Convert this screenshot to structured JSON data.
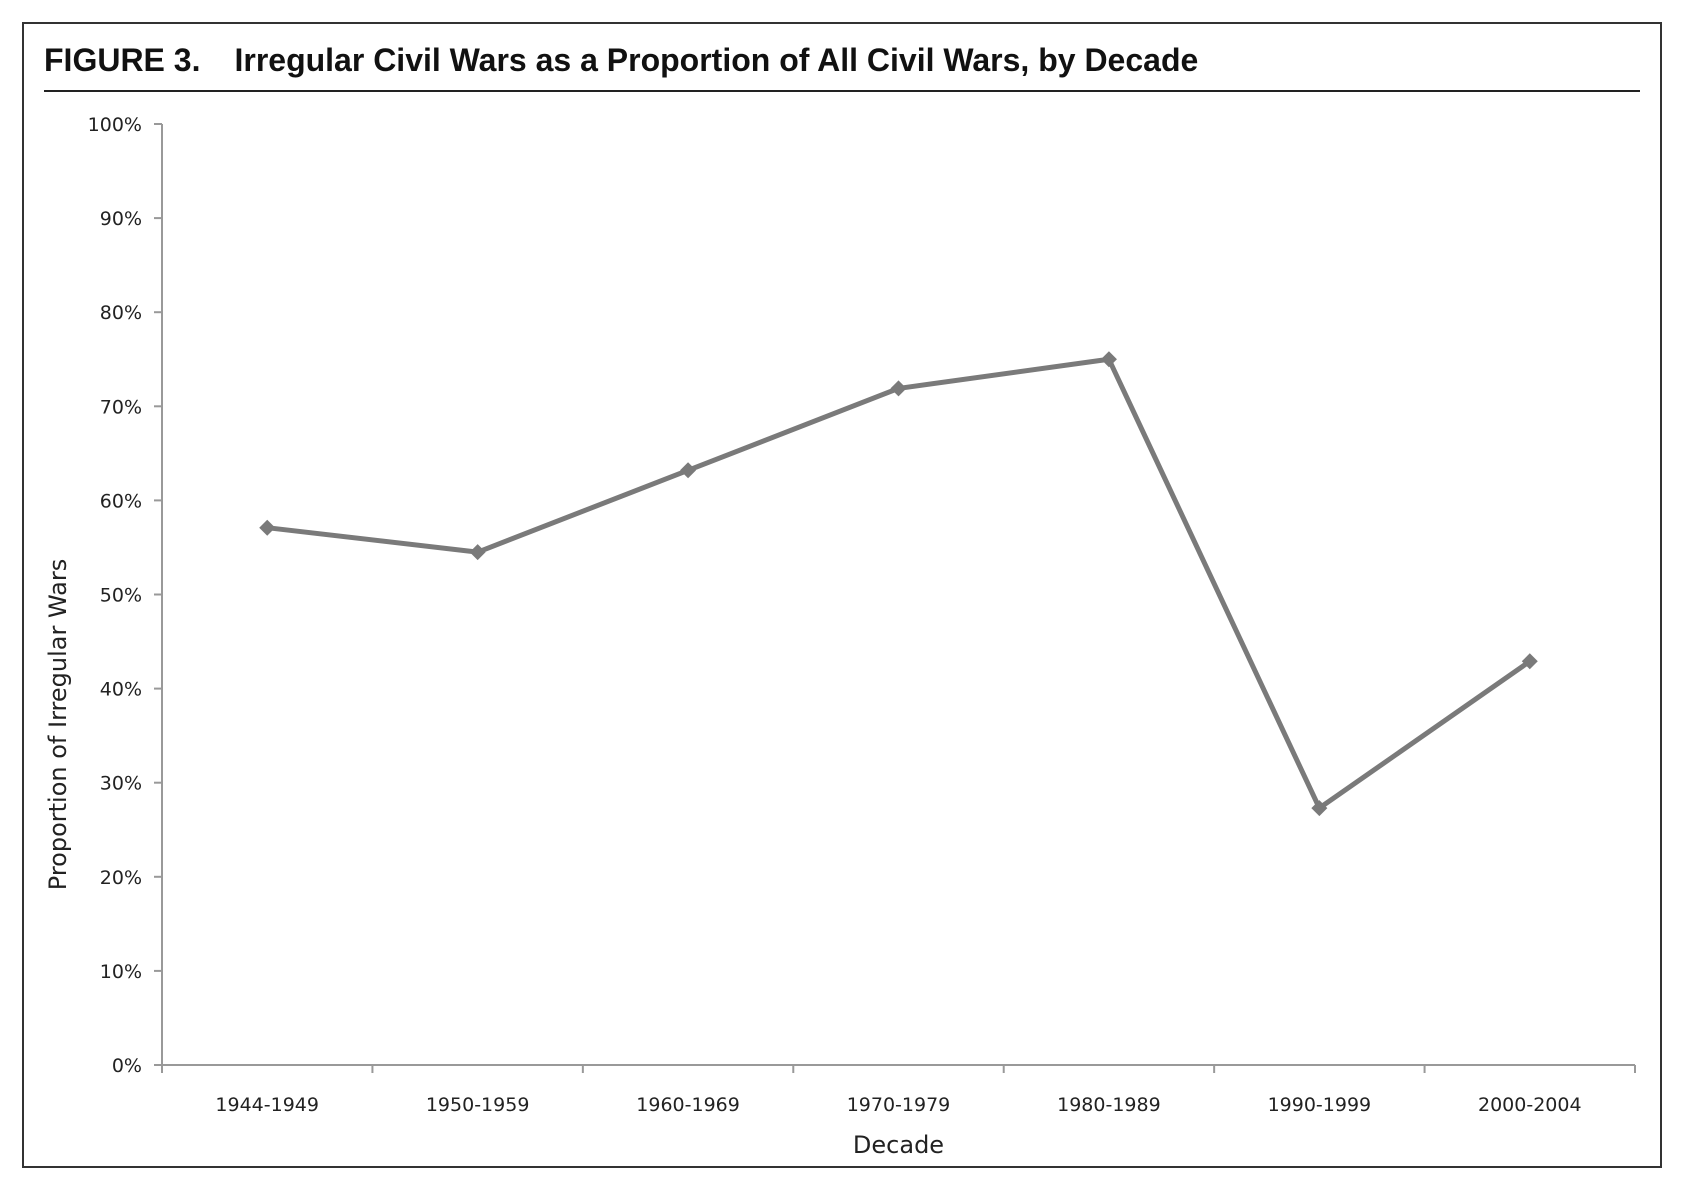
{
  "figure": {
    "label": "FIGURE 3.",
    "title": "Irregular Civil Wars as a Proportion of All Civil Wars, by Decade"
  },
  "chart_data": {
    "type": "line",
    "title": "Irregular Civil Wars as a Proportion of All Civil Wars, by Decade",
    "xlabel": "Decade",
    "ylabel": "Proportion of Irregular Wars",
    "categories": [
      "1944-1949",
      "1950-1959",
      "1960-1969",
      "1970-1979",
      "1980-1989",
      "1990-1999",
      "2000-2004"
    ],
    "series": [
      {
        "values": [
          0.571,
          0.545,
          0.632,
          0.719,
          0.75,
          0.273,
          0.429
        ]
      }
    ],
    "ylim": [
      0,
      1
    ],
    "yticks": [
      0,
      0.1,
      0.2,
      0.3,
      0.4,
      0.5,
      0.6,
      0.7,
      0.8,
      0.9,
      1.0
    ],
    "ytick_labels": [
      "0%",
      "10%",
      "20%",
      "30%",
      "40%",
      "50%",
      "60%",
      "70%",
      "80%",
      "90%",
      "100%"
    ],
    "grid": false,
    "legend": "none",
    "colors": {
      "line": "#7a7a7a",
      "marker": "#7a7a7a",
      "axis": "#999999"
    }
  }
}
